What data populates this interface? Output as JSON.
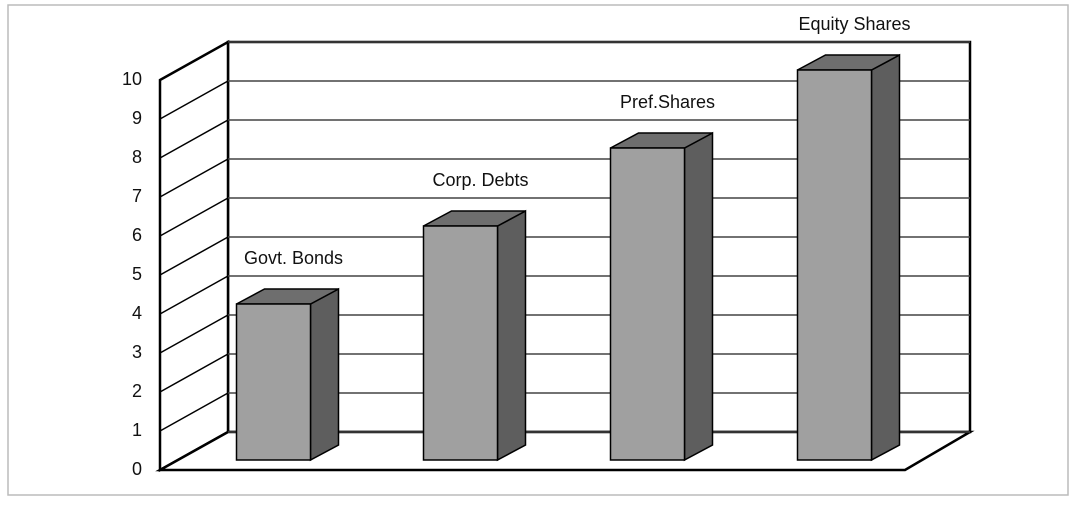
{
  "chart_data": {
    "type": "bar",
    "categories": [
      "Govt. Bonds",
      "Corp. Debts",
      "Pref.Shares",
      "Equity Shares"
    ],
    "values": [
      4,
      6,
      8,
      10
    ],
    "color": "#a0a0a0",
    "ylim": [
      0,
      10
    ],
    "yticks": [
      0,
      1,
      2,
      3,
      4,
      5,
      6,
      7,
      8,
      9,
      10
    ],
    "grid": true
  }
}
